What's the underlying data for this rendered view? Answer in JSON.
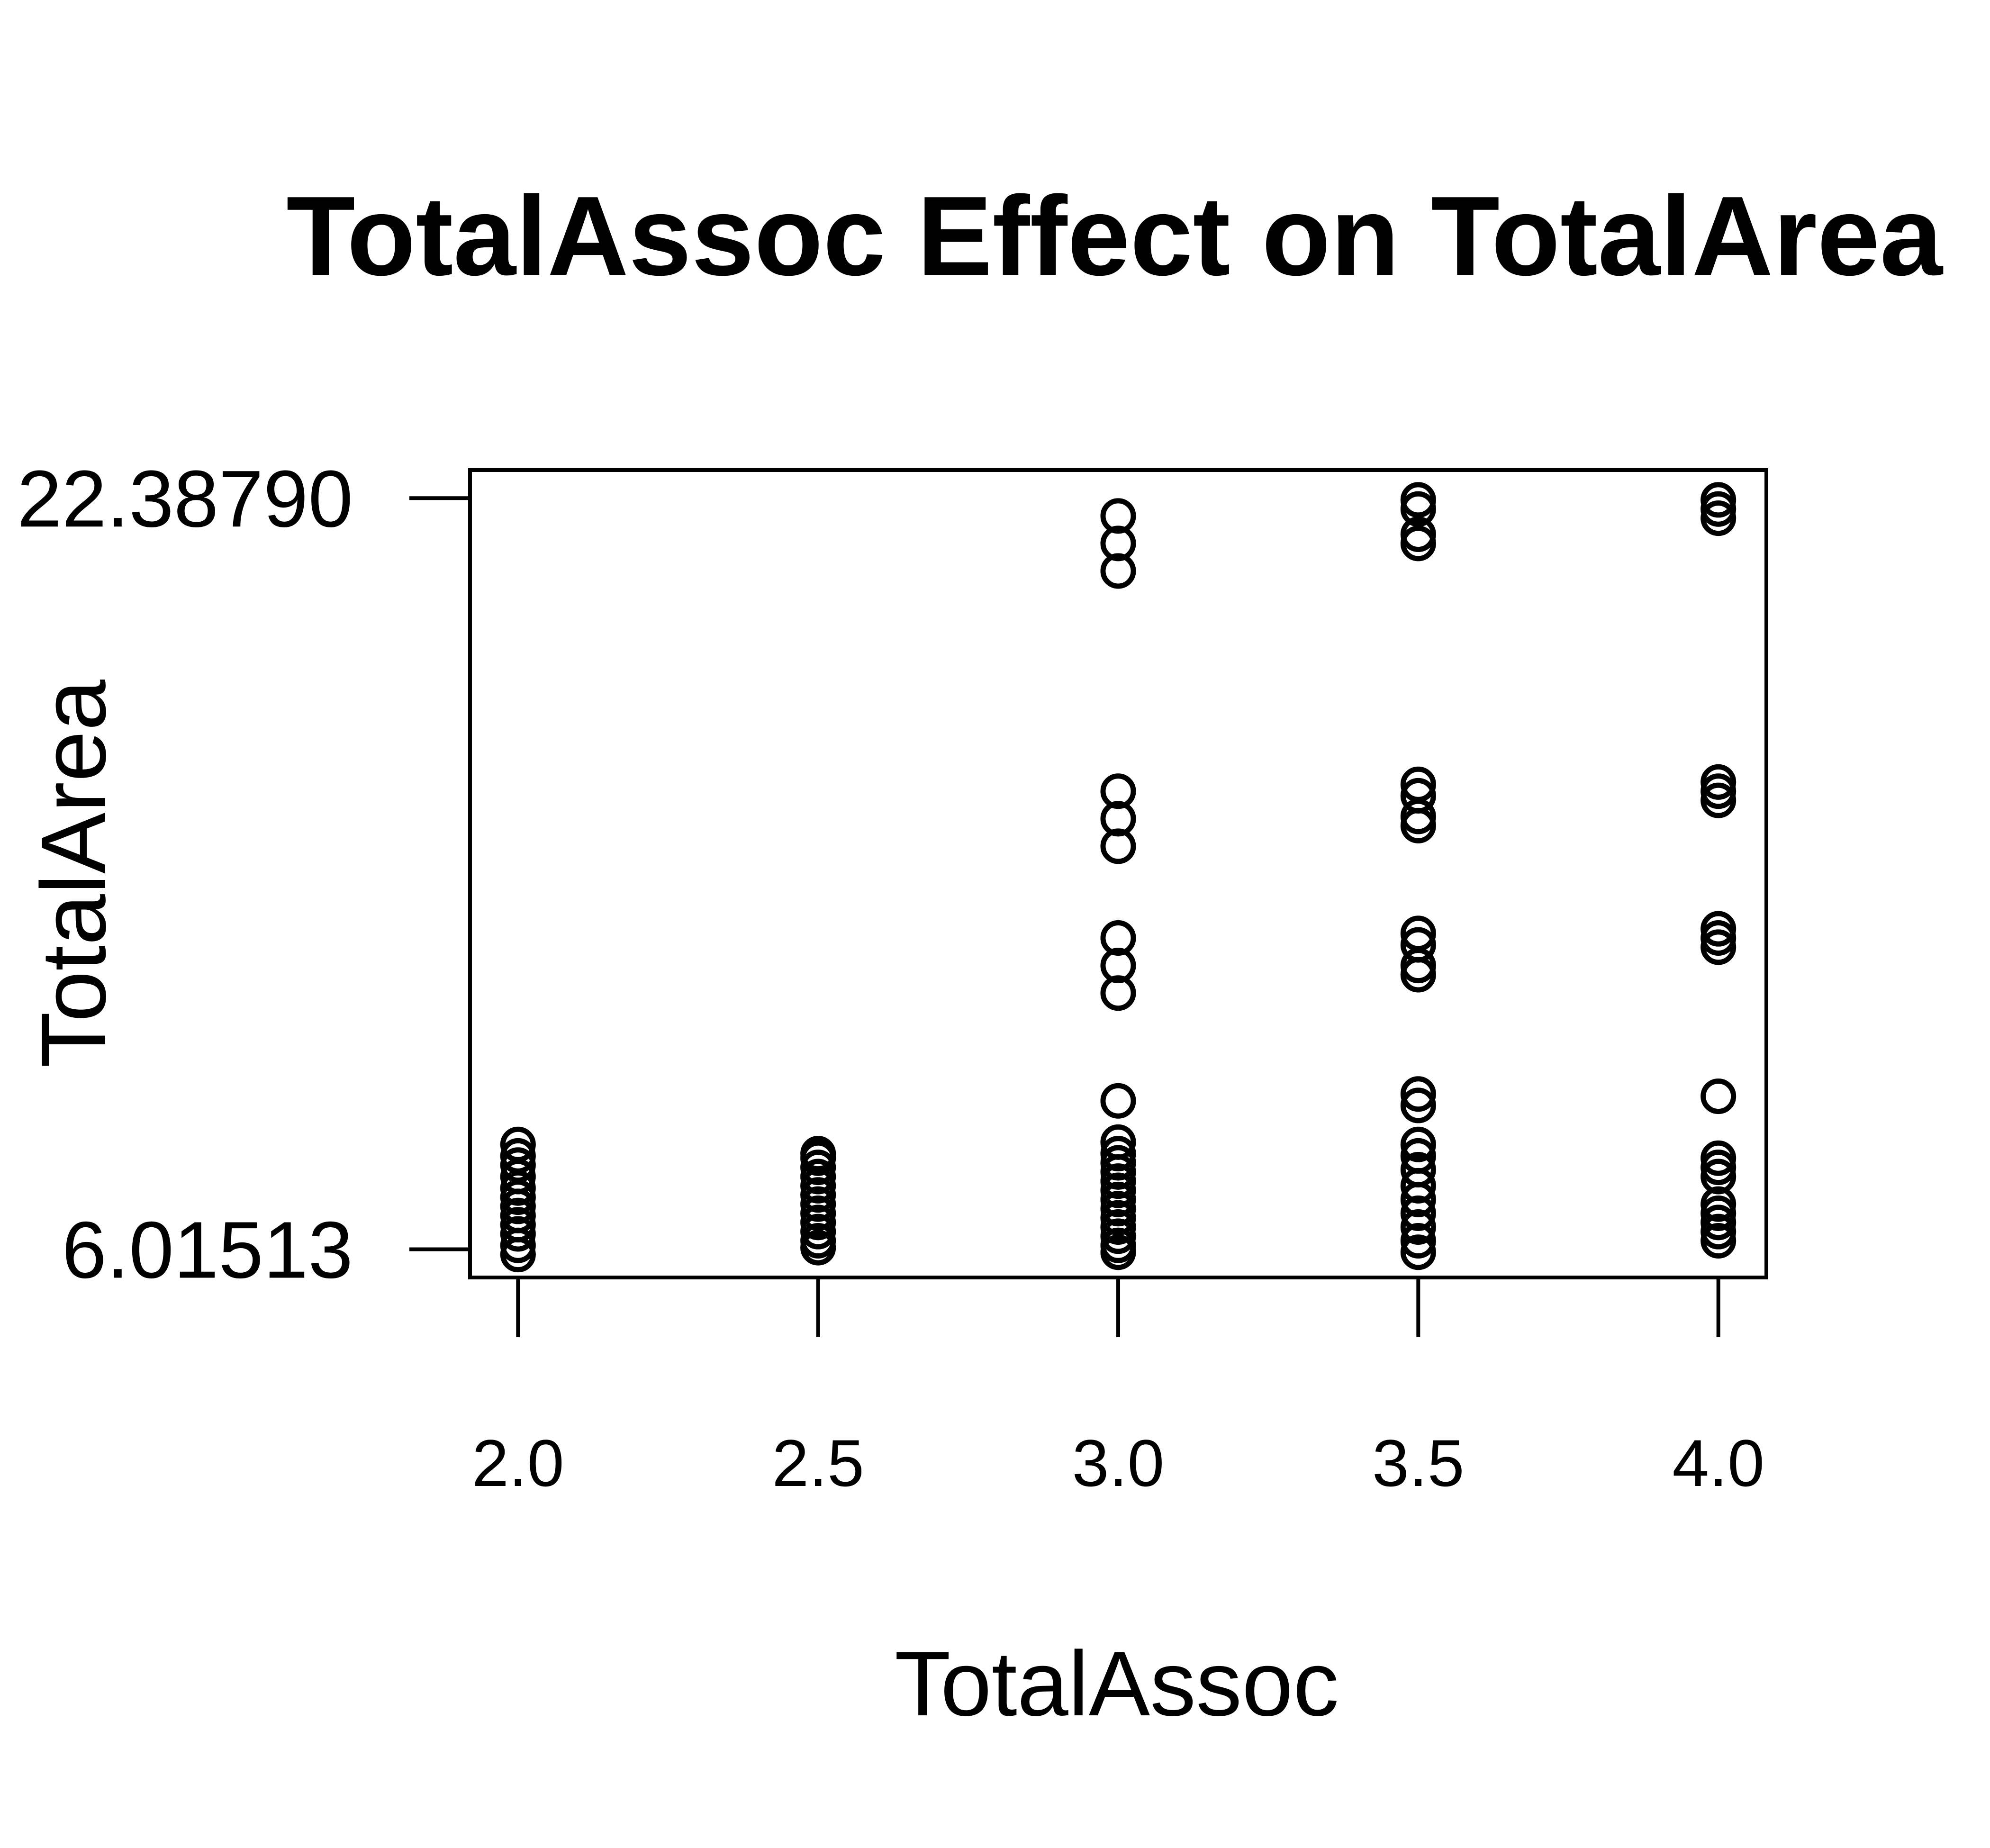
{
  "chart_data": {
    "type": "scatter",
    "title": "TotalAssoc Effect on TotalArea",
    "xlabel": "TotalAssoc",
    "ylabel": "TotalArea",
    "xlim": [
      1.92,
      4.08
    ],
    "ylim": [
      5.4,
      23.0
    ],
    "x_ticks": [
      2.0,
      2.5,
      3.0,
      3.5,
      4.0
    ],
    "x_tick_labels": [
      "2.0",
      "2.5",
      "3.0",
      "3.5",
      "4.0"
    ],
    "y_ticks": [
      6.01513,
      22.3879
    ],
    "y_tick_labels": [
      "6.01513",
      "22.38790"
    ],
    "grid": false,
    "legend": "none",
    "marker": "open-circle",
    "color": "#000000",
    "points": [
      {
        "x": 2.0,
        "y": 8.3
      },
      {
        "x": 2.0,
        "y": 8.05
      },
      {
        "x": 2.0,
        "y": 7.85
      },
      {
        "x": 2.0,
        "y": 7.6
      },
      {
        "x": 2.0,
        "y": 7.35
      },
      {
        "x": 2.0,
        "y": 7.15
      },
      {
        "x": 2.0,
        "y": 6.95
      },
      {
        "x": 2.0,
        "y": 6.75
      },
      {
        "x": 2.0,
        "y": 6.55
      },
      {
        "x": 2.0,
        "y": 6.35
      },
      {
        "x": 2.0,
        "y": 6.1
      },
      {
        "x": 2.0,
        "y": 5.9
      },
      {
        "x": 2.5,
        "y": 8.1
      },
      {
        "x": 2.5,
        "y": 8.0
      },
      {
        "x": 2.5,
        "y": 7.8
      },
      {
        "x": 2.5,
        "y": 7.6
      },
      {
        "x": 2.5,
        "y": 7.4
      },
      {
        "x": 2.5,
        "y": 7.2
      },
      {
        "x": 2.5,
        "y": 7.0
      },
      {
        "x": 2.5,
        "y": 6.8
      },
      {
        "x": 2.5,
        "y": 6.6
      },
      {
        "x": 2.5,
        "y": 6.4
      },
      {
        "x": 2.5,
        "y": 6.2
      },
      {
        "x": 2.5,
        "y": 6.05
      },
      {
        "x": 3.0,
        "y": 22.0
      },
      {
        "x": 3.0,
        "y": 21.4
      },
      {
        "x": 3.0,
        "y": 20.8
      },
      {
        "x": 3.0,
        "y": 16.0
      },
      {
        "x": 3.0,
        "y": 15.4
      },
      {
        "x": 3.0,
        "y": 14.8
      },
      {
        "x": 3.0,
        "y": 12.8
      },
      {
        "x": 3.0,
        "y": 12.2
      },
      {
        "x": 3.0,
        "y": 11.6
      },
      {
        "x": 3.0,
        "y": 9.25
      },
      {
        "x": 3.0,
        "y": 8.35
      },
      {
        "x": 3.0,
        "y": 8.1
      },
      {
        "x": 3.0,
        "y": 7.9
      },
      {
        "x": 3.0,
        "y": 7.7
      },
      {
        "x": 3.0,
        "y": 7.5
      },
      {
        "x": 3.0,
        "y": 7.3
      },
      {
        "x": 3.0,
        "y": 7.1
      },
      {
        "x": 3.0,
        "y": 6.9
      },
      {
        "x": 3.0,
        "y": 6.7
      },
      {
        "x": 3.0,
        "y": 6.5
      },
      {
        "x": 3.0,
        "y": 6.3
      },
      {
        "x": 3.0,
        "y": 6.1
      },
      {
        "x": 3.0,
        "y": 5.95
      },
      {
        "x": 3.5,
        "y": 22.35
      },
      {
        "x": 3.5,
        "y": 22.15
      },
      {
        "x": 3.5,
        "y": 21.6
      },
      {
        "x": 3.5,
        "y": 21.4
      },
      {
        "x": 3.5,
        "y": 16.15
      },
      {
        "x": 3.5,
        "y": 15.9
      },
      {
        "x": 3.5,
        "y": 15.45
      },
      {
        "x": 3.5,
        "y": 15.25
      },
      {
        "x": 3.5,
        "y": 12.9
      },
      {
        "x": 3.5,
        "y": 12.65
      },
      {
        "x": 3.5,
        "y": 12.2
      },
      {
        "x": 3.5,
        "y": 12.0
      },
      {
        "x": 3.5,
        "y": 9.4
      },
      {
        "x": 3.5,
        "y": 9.15
      },
      {
        "x": 3.5,
        "y": 8.3
      },
      {
        "x": 3.5,
        "y": 8.05
      },
      {
        "x": 3.5,
        "y": 7.75
      },
      {
        "x": 3.5,
        "y": 7.4
      },
      {
        "x": 3.5,
        "y": 7.1
      },
      {
        "x": 3.5,
        "y": 6.8
      },
      {
        "x": 3.5,
        "y": 6.5
      },
      {
        "x": 3.5,
        "y": 6.2
      },
      {
        "x": 3.5,
        "y": 5.95
      },
      {
        "x": 4.0,
        "y": 22.35
      },
      {
        "x": 4.0,
        "y": 22.15
      },
      {
        "x": 4.0,
        "y": 21.95
      },
      {
        "x": 4.0,
        "y": 16.2
      },
      {
        "x": 4.0,
        "y": 16.0
      },
      {
        "x": 4.0,
        "y": 15.8
      },
      {
        "x": 4.0,
        "y": 13.0
      },
      {
        "x": 4.0,
        "y": 12.8
      },
      {
        "x": 4.0,
        "y": 12.6
      },
      {
        "x": 4.0,
        "y": 9.35
      },
      {
        "x": 4.0,
        "y": 8.0
      },
      {
        "x": 4.0,
        "y": 7.8
      },
      {
        "x": 4.0,
        "y": 7.6
      },
      {
        "x": 4.0,
        "y": 7.0
      },
      {
        "x": 4.0,
        "y": 6.8
      },
      {
        "x": 4.0,
        "y": 6.6
      },
      {
        "x": 4.0,
        "y": 6.4
      },
      {
        "x": 4.0,
        "y": 6.2
      }
    ]
  }
}
